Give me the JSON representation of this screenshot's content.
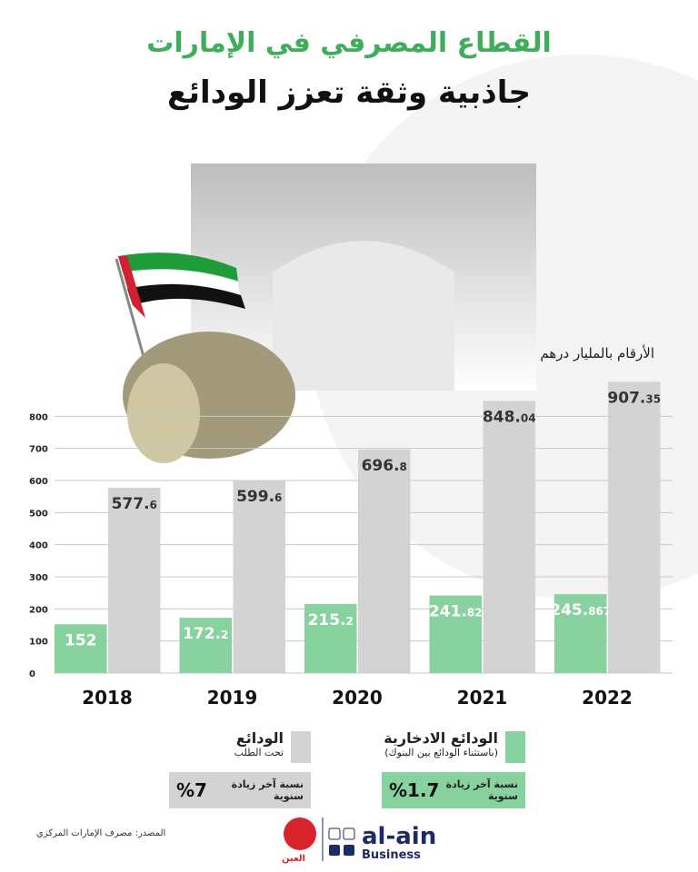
{
  "header": {
    "title": "القطاع المصرفي في الإمارات",
    "subtitle": "جاذبية وثقة تعزز الودائع"
  },
  "chart_data": {
    "type": "bar",
    "unit_note": "الأرقام بالمليار درهم",
    "categories": [
      "2018",
      "2019",
      "2020",
      "2021",
      "2022"
    ],
    "series": [
      {
        "name": "الودائع الادخارية",
        "note": "(باستثناء الودائع بين البنوك)",
        "color": "#88d29f",
        "values": [
          152,
          172.2,
          215.2,
          241.82,
          245.867
        ]
      },
      {
        "name": "الودائع",
        "note": "تحت الطلب",
        "color": "#d3d3d3",
        "values": [
          577.6,
          599.6,
          696.8,
          848.04,
          907.35
        ]
      }
    ],
    "ylim": [
      0,
      900
    ],
    "yticks": [
      0,
      100,
      200,
      300,
      400,
      500,
      600,
      700,
      800
    ],
    "grid": true
  },
  "summary": [
    {
      "label": "نسبة آخر زيادة سنوية",
      "value": "%1.7"
    },
    {
      "label": "نسبة آخر زيادة سنوية",
      "value": "%7"
    }
  ],
  "footer": {
    "source": "المصدر: مصرف الإمارات المركزي",
    "brand": "al-ain",
    "brand_sub": "Business",
    "brand_ar": "العين"
  }
}
